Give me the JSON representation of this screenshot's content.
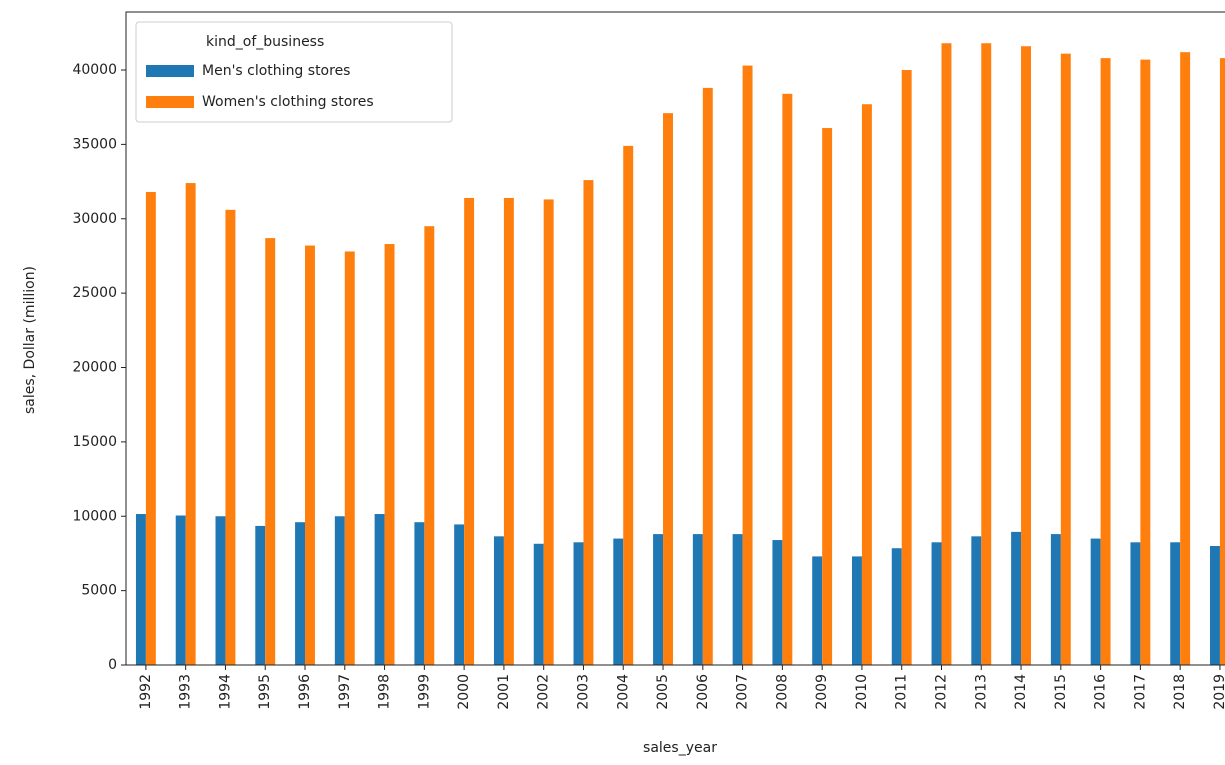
{
  "chart_data": {
    "type": "bar",
    "xlabel": "sales_year",
    "ylabel": "sales, Dollar (million)",
    "categories": [
      "1992",
      "1993",
      "1994",
      "1995",
      "1996",
      "1997",
      "1998",
      "1999",
      "2000",
      "2001",
      "2002",
      "2003",
      "2004",
      "2005",
      "2006",
      "2007",
      "2008",
      "2009",
      "2010",
      "2011",
      "2012",
      "2013",
      "2014",
      "2015",
      "2016",
      "2017",
      "2018",
      "2019"
    ],
    "series": [
      {
        "name": "Men's clothing stores",
        "color": "#1f77b4",
        "values": [
          10150,
          10050,
          10000,
          9350,
          9600,
          10000,
          10150,
          9600,
          9450,
          8650,
          8150,
          8250,
          8500,
          8800,
          8800,
          8800,
          8400,
          7300,
          7300,
          7850,
          8250,
          8650,
          8950,
          8800,
          8500,
          8250,
          8250,
          8000
        ]
      },
      {
        "name": "Women's clothing stores",
        "color": "#ff7f0e",
        "values": [
          31800,
          32400,
          30600,
          28700,
          28200,
          27800,
          28300,
          29500,
          31400,
          31400,
          31300,
          32600,
          34900,
          37100,
          38800,
          40300,
          38400,
          36100,
          37700,
          40000,
          41800,
          41800,
          41600,
          41100,
          40800,
          40700,
          41200,
          40800
        ]
      }
    ],
    "legend_title": "kind_of_business",
    "legend": "upper left",
    "ylim": [
      0,
      43900
    ],
    "yticks": [
      0,
      5000,
      10000,
      15000,
      20000,
      25000,
      30000,
      35000,
      40000
    ]
  }
}
